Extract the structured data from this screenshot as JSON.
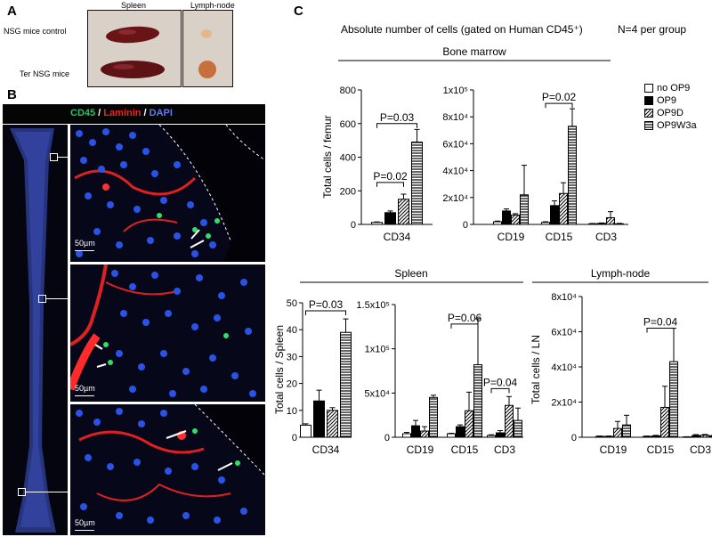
{
  "panels": {
    "a": "A",
    "b": "B",
    "c": "C"
  },
  "panel_a": {
    "col_spleen": "Spleen",
    "col_lymph": "Lymph-node",
    "row_control": "NSG mice control",
    "row_ter": "Ter NSG mice"
  },
  "panel_b": {
    "legend": {
      "cd45": "CD45",
      "sep1": " / ",
      "laminin": "Laminin",
      "sep2": " / ",
      "dapi": "DAPI"
    },
    "scale_bar": "50µm",
    "colors": {
      "cd45": "#22c55e",
      "laminin": "#ef2222",
      "dapi": "#5b7cff",
      "background": "#05050f"
    }
  },
  "panel_c": {
    "title": "Absolute number of cells (gated on Human CD45⁺)",
    "n_note": "N=4 per group",
    "legend": [
      "no OP9",
      "OP9",
      "OP9D",
      "OP9W3a"
    ],
    "group_titles": {
      "bone_marrow": "Bone marrow",
      "spleen": "Spleen",
      "lymph_node": "Lymph-node"
    }
  },
  "chart_data": [
    {
      "type": "bar",
      "group": "Bone marrow",
      "ylabel": "Total cells / femur",
      "ylim": [
        0,
        800
      ],
      "yticks": [
        "0",
        "200",
        "400",
        "600",
        "800"
      ],
      "categories": [
        "CD34"
      ],
      "series": [
        {
          "name": "no OP9",
          "values": [
            12
          ],
          "err": [
            3
          ]
        },
        {
          "name": "OP9",
          "values": [
            70
          ],
          "err": [
            10
          ]
        },
        {
          "name": "OP9D",
          "values": [
            150
          ],
          "err": [
            30
          ]
        },
        {
          "name": "OP9W3a",
          "values": [
            490
          ],
          "err": [
            75
          ]
        }
      ],
      "annotations": [
        {
          "text": "P=0.03",
          "from": "no OP9",
          "to": "OP9W3a",
          "category": "CD34",
          "y": 600
        },
        {
          "text": "P=0.02",
          "from": "no OP9",
          "to": "OP9D",
          "category": "CD34",
          "y": 250
        }
      ]
    },
    {
      "type": "bar",
      "group": "Bone marrow",
      "ylabel": "",
      "ylim": [
        0,
        100000
      ],
      "yticks": [
        "0",
        "2x10⁴",
        "4x10⁴",
        "6x10⁴",
        "8x10⁴",
        "1x10⁵"
      ],
      "categories": [
        "CD19",
        "CD15",
        "CD3"
      ],
      "series": [
        {
          "name": "no OP9",
          "values": [
            2000,
            1500,
            500
          ],
          "err": [
            500,
            500,
            200
          ]
        },
        {
          "name": "OP9",
          "values": [
            10000,
            14000,
            800
          ],
          "err": [
            1500,
            3500,
            300
          ]
        },
        {
          "name": "OP9D",
          "values": [
            7000,
            23000,
            5000
          ],
          "err": [
            1000,
            8000,
            4500
          ]
        },
        {
          "name": "OP9W3a",
          "values": [
            22000,
            73000,
            500
          ],
          "err": [
            22000,
            13000,
            300
          ]
        }
      ],
      "annotations": [
        {
          "text": "P=0.02",
          "from": "no OP9",
          "to": "OP9W3a",
          "category": "CD15",
          "y": 90000
        }
      ]
    },
    {
      "type": "bar",
      "group": "Spleen",
      "ylabel": "Total cells / Spleen",
      "ylim": [
        0,
        50
      ],
      "yticks": [
        "0",
        "10",
        "20",
        "30",
        "40",
        "50"
      ],
      "categories": [
        "CD34"
      ],
      "series": [
        {
          "name": "no OP9",
          "values": [
            4.5
          ],
          "err": [
            0.5
          ]
        },
        {
          "name": "OP9",
          "values": [
            13.5
          ],
          "err": [
            4
          ]
        },
        {
          "name": "OP9D",
          "values": [
            10
          ],
          "err": [
            1
          ]
        },
        {
          "name": "OP9W3a",
          "values": [
            39
          ],
          "err": [
            5
          ]
        }
      ],
      "annotations": [
        {
          "text": "P=0.03",
          "from": "no OP9",
          "to": "OP9W3a",
          "category": "CD34",
          "y": 47
        }
      ]
    },
    {
      "type": "bar",
      "group": "Spleen",
      "ylabel": "",
      "ylim": [
        0,
        150000
      ],
      "yticks": [
        "0",
        "5x10⁴",
        "1x10⁵",
        "1.5x10⁵"
      ],
      "categories": [
        "CD19",
        "CD15",
        "CD3"
      ],
      "series": [
        {
          "name": "no OP9",
          "values": [
            4000,
            4000,
            2000
          ],
          "err": [
            1500,
            500,
            800
          ]
        },
        {
          "name": "OP9",
          "values": [
            13000,
            12000,
            5000
          ],
          "err": [
            6000,
            2000,
            2500
          ]
        },
        {
          "name": "OP9D",
          "values": [
            7000,
            30000,
            36000
          ],
          "err": [
            5000,
            21000,
            10000
          ]
        },
        {
          "name": "OP9W3a",
          "values": [
            45000,
            82000,
            19000
          ],
          "err": [
            2500,
            52000,
            14000
          ]
        }
      ],
      "annotations": [
        {
          "text": "P=0.06",
          "from": "no OP9",
          "to": "OP9W3a",
          "category": "CD15",
          "y": 128000
        },
        {
          "text": "P=0.04",
          "from": "no OP9",
          "to": "OP9D",
          "category": "CD3",
          "y": 55000
        }
      ]
    },
    {
      "type": "bar",
      "group": "Lymph-node",
      "ylabel": "Total cells / LN",
      "ylim": [
        0,
        80000
      ],
      "yticks": [
        "0",
        "2x10⁴",
        "4x10⁴",
        "6x10⁴",
        "8x10⁴"
      ],
      "categories": [
        "CD19",
        "CD15",
        "CD3"
      ],
      "series": [
        {
          "name": "no OP9",
          "values": [
            500,
            500,
            200
          ],
          "err": [
            200,
            200,
            100
          ]
        },
        {
          "name": "OP9",
          "values": [
            500,
            800,
            1000
          ],
          "err": [
            200,
            300,
            500
          ]
        },
        {
          "name": "OP9D",
          "values": [
            5000,
            17000,
            1200
          ],
          "err": [
            4000,
            12000,
            400
          ]
        },
        {
          "name": "OP9W3a",
          "values": [
            7000,
            43000,
            800
          ],
          "err": [
            5500,
            19000,
            300
          ]
        }
      ],
      "annotations": [
        {
          "text": "P=0.04",
          "from": "no OP9",
          "to": "OP9W3a",
          "category": "CD15",
          "y": 62000
        }
      ]
    }
  ]
}
